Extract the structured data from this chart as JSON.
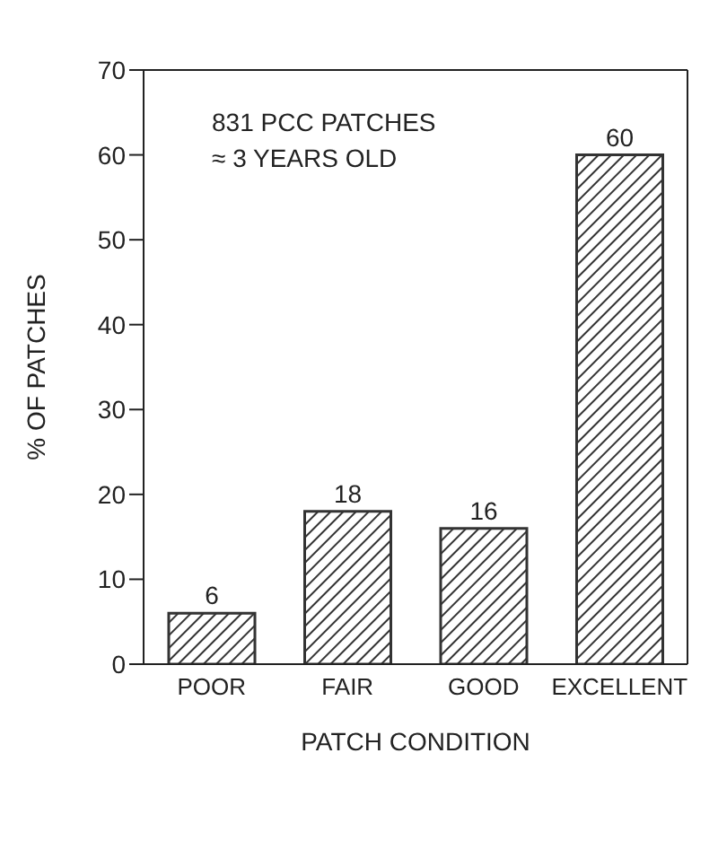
{
  "chart_data": {
    "type": "bar",
    "xlabel": "PATCH CONDITION",
    "ylabel": "% OF PATCHES",
    "categories": [
      "POOR",
      "FAIR",
      "GOOD",
      "EXCELLENT"
    ],
    "values": [
      6,
      18,
      16,
      60
    ],
    "color": "#333333",
    "data_labels": true,
    "ylim": [
      0,
      70
    ],
    "yticks": [
      0,
      10,
      20,
      30,
      40,
      50,
      60,
      70
    ],
    "grid": false,
    "legend": false,
    "annotations": [
      "831 PCC PATCHES",
      "≈ 3 YEARS OLD"
    ]
  }
}
